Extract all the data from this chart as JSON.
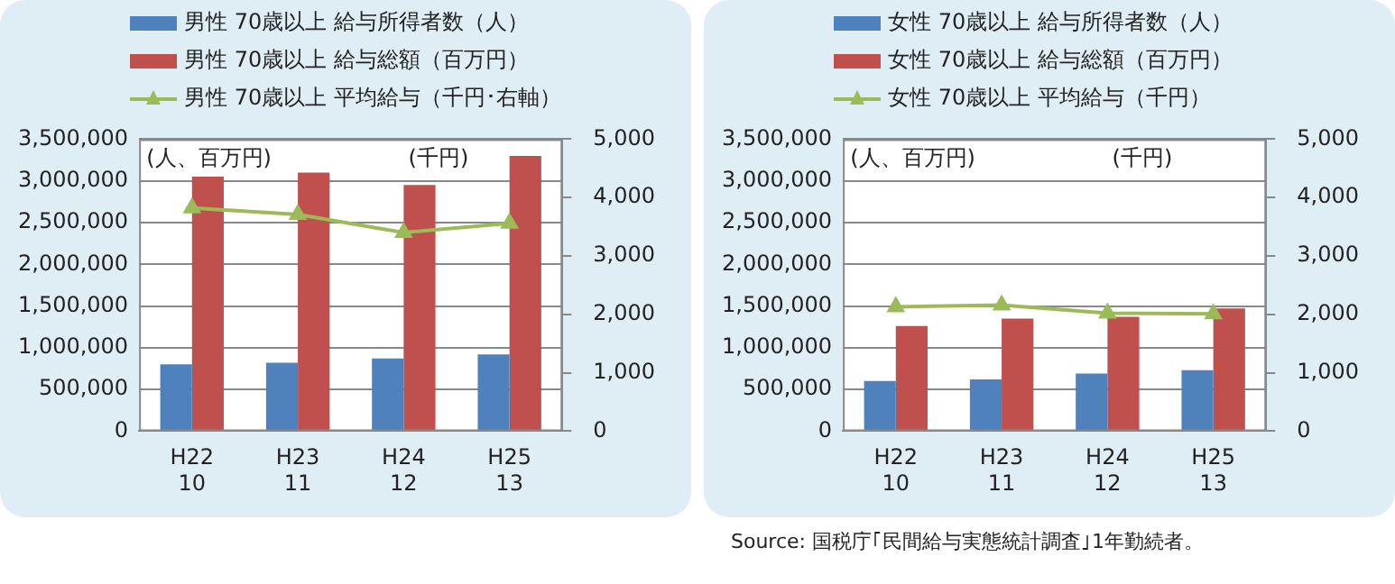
{
  "chart_data": [
    {
      "type": "bar",
      "categories": [
        "H22\n10",
        "H23\n11",
        "H24\n12",
        "H25\n13"
      ],
      "series": [
        {
          "name": "男性 70歳以上 給与所得者数（人）",
          "color": "#4f81bd",
          "values": [
            800000,
            820000,
            870000,
            920000
          ]
        },
        {
          "name": "男性 70歳以上 給与総額（百万円）",
          "color": "#c0504d",
          "values": [
            3050000,
            3100000,
            2950000,
            3300000
          ]
        },
        {
          "name": "男性 70歳以上 平均給与（千円･右軸）",
          "color": "#9bbb59",
          "type": "line",
          "axis": "y2",
          "values": [
            3820,
            3710,
            3400,
            3560
          ]
        }
      ],
      "ylabel": "(人、百万円)",
      "y2label": "(千円)",
      "ylim": [
        0,
        3500000
      ],
      "yticks": [
        0,
        {
          "value": 500000,
          "label": "500,000"
        },
        {
          "value": 1000000,
          "label": "1,000,000"
        },
        {
          "value": 1500000,
          "label": "1,500,000"
        },
        {
          "value": 2000000,
          "label": "2,000,000"
        },
        {
          "value": 2500000,
          "label": "2,500,000"
        },
        {
          "value": 3000000,
          "label": "3,000,000"
        },
        {
          "value": 3500000,
          "label": "3,500,000"
        }
      ],
      "y2lim": [
        0,
        5000
      ],
      "y2ticks": [
        0,
        {
          "value": 1000,
          "label": "1,000"
        },
        {
          "value": 2000,
          "label": "2,000"
        },
        {
          "value": 3000,
          "label": "3,000"
        },
        {
          "value": 4000,
          "label": "4,000"
        },
        {
          "value": 5000,
          "label": "5,000"
        }
      ],
      "grid": "y",
      "legend": "top",
      "marker": "triangle"
    },
    {
      "type": "bar",
      "categories": [
        "H22\n10",
        "H23\n11",
        "H24\n12",
        "H25\n13"
      ],
      "series": [
        {
          "name": "女性 70歳以上 給与所得者数（人）",
          "color": "#4f81bd",
          "values": [
            600000,
            620000,
            690000,
            730000
          ]
        },
        {
          "name": "女性 70歳以上 給与総額（百万円）",
          "color": "#c0504d",
          "values": [
            1260000,
            1350000,
            1370000,
            1470000
          ]
        },
        {
          "name": "女性 70歳以上 平均給与（千円）",
          "color": "#9bbb59",
          "type": "line",
          "axis": "y2",
          "values": [
            2130,
            2160,
            2020,
            2010
          ]
        }
      ],
      "ylabel": "(人、百万円)",
      "y2label": "(千円)",
      "ylim": [
        0,
        3500000
      ],
      "yticks": [
        0,
        {
          "value": 500000,
          "label": "500,000"
        },
        {
          "value": 1000000,
          "label": "1,000,000"
        },
        {
          "value": 1500000,
          "label": "1,500,000"
        },
        {
          "value": 2000000,
          "label": "2,000,000"
        },
        {
          "value": 2500000,
          "label": "2,500,000"
        },
        {
          "value": 3000000,
          "label": "3,000,000"
        },
        {
          "value": 3500000,
          "label": "3,500,000"
        }
      ],
      "y2lim": [
        0,
        5000
      ],
      "y2ticks": [
        0,
        {
          "value": 1000,
          "label": "1,000"
        },
        {
          "value": 2000,
          "label": "2,000"
        },
        {
          "value": 3000,
          "label": "3,000"
        },
        {
          "value": 4000,
          "label": "4,000"
        },
        {
          "value": 5000,
          "label": "5,000"
        }
      ],
      "grid": "y",
      "legend": "top",
      "marker": "triangle",
      "annotations": [
        "Source:  国税庁｢民間給与実態統計調査｣1年勤続者。"
      ]
    }
  ]
}
